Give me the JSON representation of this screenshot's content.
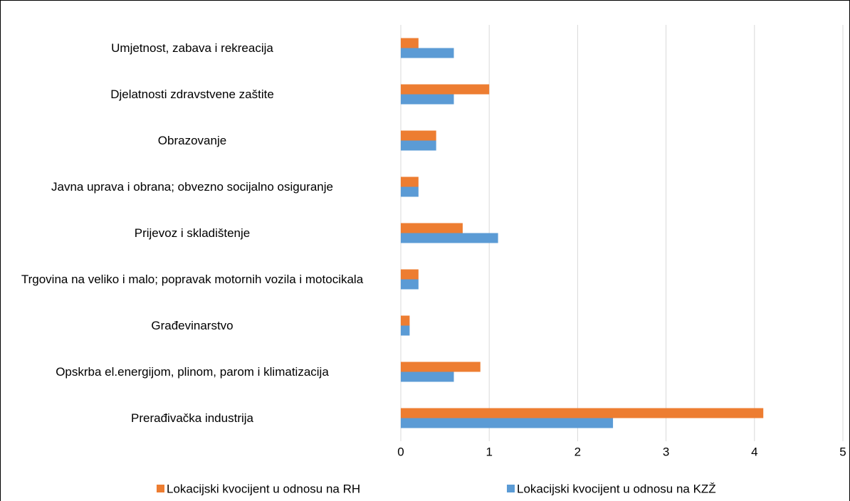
{
  "chart_data": {
    "type": "hbar",
    "categories": [
      "Umjetnost, zabava i rekreacija",
      "Djelatnosti zdravstvene zaštite",
      "Obrazovanje",
      "Javna uprava i obrana; obvezno socijalno osiguranje",
      "Prijevoz i skladištenje",
      "Trgovina na veliko i malo; popravak motornih vozila i motocikala",
      "Građevinarstvo",
      "Opskrba el.energijom, plinom, parom i klimatizacija",
      "Prerađivačka industrija"
    ],
    "series": [
      {
        "name": "Lokacijski kvocijent u odnosu na RH",
        "color": "#ed7d31",
        "values": [
          0.2,
          1.0,
          0.4,
          0.2,
          0.7,
          0.2,
          0.1,
          0.9,
          4.1
        ]
      },
      {
        "name": "Lokacijski kvocijent u odnosu na KZŽ",
        "color": "#5b9bd5",
        "values": [
          0.6,
          0.6,
          0.4,
          0.2,
          1.1,
          0.2,
          0.1,
          0.6,
          2.4
        ]
      }
    ],
    "xlim": [
      0,
      5
    ],
    "xticks": [
      0,
      1,
      2,
      3,
      4,
      5
    ],
    "grid": true,
    "legend": "bottom"
  }
}
